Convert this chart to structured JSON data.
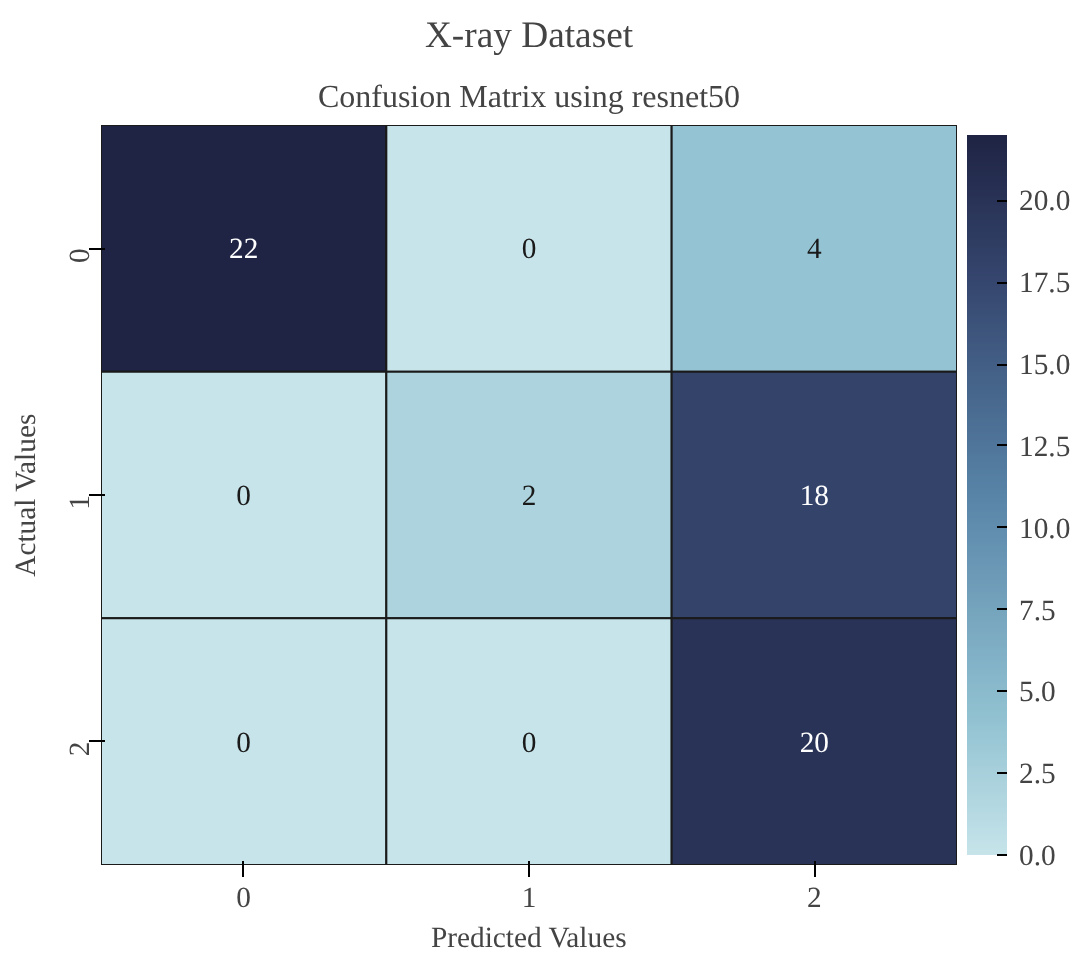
{
  "chart_data": {
    "type": "heatmap",
    "title": "X-ray Dataset",
    "subtitle": "Confusion Matrix using resnet50",
    "xlabel": "Predicted Values",
    "ylabel": "Actual Values",
    "categories": [
      "0",
      "1",
      "2"
    ],
    "y_categories": [
      "0",
      "1",
      "2"
    ],
    "cells": [
      [
        22,
        0,
        4
      ],
      [
        0,
        2,
        18
      ],
      [
        0,
        0,
        20
      ]
    ],
    "clim": [
      0,
      22
    ],
    "cticks": [
      {
        "value": 0,
        "label": "0.0"
      },
      {
        "value": 2.5,
        "label": "2.5"
      },
      {
        "value": 5,
        "label": "5.0"
      },
      {
        "value": 7.5,
        "label": "7.5"
      },
      {
        "value": 10,
        "label": "10.0"
      },
      {
        "value": 12.5,
        "label": "12.5"
      },
      {
        "value": 15,
        "label": "15.0"
      },
      {
        "value": 17.5,
        "label": "17.5"
      },
      {
        "value": 20,
        "label": "20.0"
      }
    ],
    "data_labels": true
  }
}
